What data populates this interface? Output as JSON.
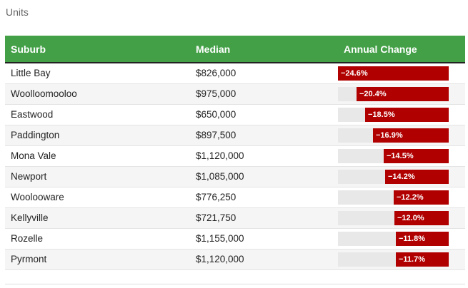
{
  "section_label": "Units",
  "chart_data": {
    "type": "table",
    "columns": [
      "Suburb",
      "Median",
      "Annual Change"
    ],
    "bar_color": "#b00000",
    "header_color": "#43a047",
    "bar_max_abs": 24.6,
    "rows": [
      {
        "suburb": "Little Bay",
        "median": "$826,000",
        "change": -24.6,
        "change_label": "−24.6%"
      },
      {
        "suburb": "Woolloomooloo",
        "median": "$975,000",
        "change": -20.4,
        "change_label": "−20.4%"
      },
      {
        "suburb": "Eastwood",
        "median": "$650,000",
        "change": -18.5,
        "change_label": "−18.5%"
      },
      {
        "suburb": "Paddington",
        "median": "$897,500",
        "change": -16.9,
        "change_label": "−16.9%"
      },
      {
        "suburb": "Mona Vale",
        "median": "$1,120,000",
        "change": -14.5,
        "change_label": "−14.5%"
      },
      {
        "suburb": "Newport",
        "median": "$1,085,000",
        "change": -14.2,
        "change_label": "−14.2%"
      },
      {
        "suburb": "Woolooware",
        "median": "$776,250",
        "change": -12.2,
        "change_label": "−12.2%"
      },
      {
        "suburb": "Kellyville",
        "median": "$721,750",
        "change": -12.0,
        "change_label": "−12.0%"
      },
      {
        "suburb": "Rozelle",
        "median": "$1,155,000",
        "change": -11.8,
        "change_label": "−11.8%"
      },
      {
        "suburb": "Pyrmont",
        "median": "$1,120,000",
        "change": -11.7,
        "change_label": "−11.7%"
      }
    ]
  }
}
